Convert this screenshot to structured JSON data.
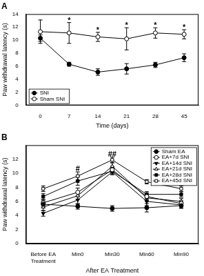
{
  "chart_data": [
    {
      "type": "line",
      "title": "A",
      "xlabel": "Time (days)",
      "ylabel": "Paw withdrawal latency (s)",
      "categories": [
        "0",
        "7",
        "14",
        "21",
        "28",
        "45"
      ],
      "series": [
        {
          "name": "SNI",
          "color": "#000000",
          "marker": "filled_circle",
          "values": [
            10.3,
            6.3,
            5.1,
            5.6,
            6.2,
            7.3
          ],
          "errors": [
            0.5,
            0.3,
            0.5,
            0.8,
            0.4,
            0.6
          ]
        },
        {
          "name": "Sham SNI",
          "color": "#000000",
          "marker": "open_circle",
          "values": [
            11.3,
            11.1,
            10.5,
            10.2,
            11.1,
            10.9
          ],
          "errors": [
            1.8,
            1.6,
            0.7,
            1.7,
            0.8,
            0.7
          ]
        }
      ],
      "ylim": [
        0,
        14
      ],
      "yticks": [
        0,
        2,
        4,
        6,
        8,
        10,
        12,
        14
      ],
      "grid": false,
      "legend": "lower left",
      "annotations": [
        {
          "text": "*",
          "x": "7",
          "y": 13.0
        },
        {
          "text": "*",
          "x": "14",
          "y": 11.5
        },
        {
          "text": "*",
          "x": "21",
          "y": 12.2
        },
        {
          "text": "*",
          "x": "28",
          "y": 12.2
        },
        {
          "text": "*",
          "x": "45",
          "y": 11.9
        }
      ]
    },
    {
      "type": "line",
      "title": "B",
      "xlabel": "After EA Treatment",
      "ylabel": "Paw withdrawal latency (s)",
      "categories": [
        "Before EA Treatment",
        "Min0",
        "Min30",
        "Min60",
        "Min90"
      ],
      "series": [
        {
          "name": "Sham EA",
          "color": "#000000",
          "marker": "filled_circle",
          "values": [
            5.6,
            5.3,
            5.0,
            5.1,
            5.4
          ],
          "errors": [
            0.5,
            0.4,
            0.4,
            0.6,
            0.4
          ]
        },
        {
          "name": "EA+7d SNI",
          "color": "#000000",
          "marker": "open_circle",
          "values": [
            5.8,
            7.3,
            10.5,
            6.7,
            5.7
          ],
          "errors": [
            0.5,
            0.6,
            0.5,
            0.5,
            0.4
          ]
        },
        {
          "name": "EA+14d SNI",
          "color": "#000000",
          "marker": "filled_triangle_down",
          "values": [
            4.3,
            6.2,
            10.2,
            6.0,
            5.5
          ],
          "errors": [
            0.4,
            0.6,
            0.4,
            0.6,
            0.4
          ]
        },
        {
          "name": "EA+21d SNI",
          "color": "#000000",
          "marker": "open_triangle_up",
          "values": [
            5.2,
            6.8,
            11.0,
            6.5,
            6.0
          ],
          "errors": [
            0.5,
            0.5,
            0.5,
            0.5,
            0.4
          ]
        },
        {
          "name": "EA+28d SNI",
          "color": "#000000",
          "marker": "filled_square",
          "values": [
            6.7,
            8.9,
            10.3,
            7.0,
            7.0
          ],
          "errors": [
            0.4,
            0.6,
            0.5,
            0.4,
            0.4
          ]
        },
        {
          "name": "EA+45d SNI",
          "color": "#000000",
          "marker": "open_square",
          "values": [
            7.8,
            9.6,
            11.9,
            8.8,
            7.8
          ],
          "errors": [
            0.4,
            0.6,
            0.4,
            0.3,
            0.4
          ]
        }
      ],
      "ylim": [
        0,
        14
      ],
      "yticks": [
        0,
        2,
        4,
        6,
        8,
        10,
        12
      ],
      "grid": false,
      "legend": "upper right",
      "annotations": [
        {
          "text": "#",
          "x": "Min0",
          "y": 10.6
        },
        {
          "text": "##",
          "x": "Min30",
          "y": 12.7
        }
      ]
    }
  ]
}
